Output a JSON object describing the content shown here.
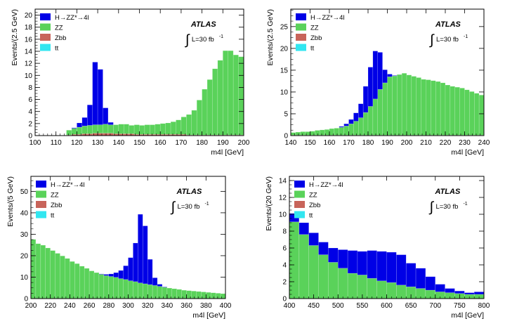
{
  "figure": {
    "legend_entries": [
      {
        "label": "H→ZZ*→4l",
        "color": "#0000e6"
      },
      {
        "label": "ZZ",
        "color": "#5ad25a"
      },
      {
        "label": "Zbb",
        "color": "#c8645a"
      },
      {
        "label": "tt",
        "color": "#32e6f0"
      }
    ],
    "experiment_label": "ATLAS",
    "luminosity_label": "L=30 fb",
    "luminosity_superscript": "-1",
    "integral_symbol": "∫"
  },
  "chart_data": [
    {
      "type": "bar",
      "stacked": true,
      "ylabel": "Events/(2.5 GeV)",
      "xlabel": "m4l [GeV]",
      "xlim": [
        100,
        200
      ],
      "ylim": [
        0,
        21
      ],
      "xticks": [
        100,
        110,
        120,
        130,
        140,
        150,
        160,
        170,
        180,
        190,
        200
      ],
      "yticks": [
        0,
        2,
        4,
        6,
        8,
        10,
        12,
        14,
        16,
        18,
        20
      ],
      "legend_position": "top-left",
      "bin_width": 2.5,
      "bin_start": 115,
      "series": [
        {
          "name": "tt",
          "values": [
            0,
            0,
            0,
            0,
            0,
            0,
            0,
            0,
            0,
            0,
            0,
            0,
            0,
            0,
            0,
            0,
            0,
            0,
            0,
            0,
            0,
            0,
            0,
            0,
            0,
            0,
            0,
            0,
            0,
            0,
            0,
            0,
            0,
            0
          ]
        },
        {
          "name": "Zbb",
          "values": [
            0.1,
            0.2,
            0.2,
            0.3,
            0.3,
            0.4,
            0.4,
            0.4,
            0.4,
            0.3,
            0.3,
            0.3,
            0.3,
            0.2,
            0.2,
            0.2,
            0.2,
            0.2,
            0.2,
            0.2,
            0.2,
            0.2,
            0.2,
            0.1,
            0.1,
            0.1,
            0.1,
            0.1,
            0.1,
            0.1,
            0.1,
            0.1,
            0.1,
            0.1
          ]
        },
        {
          "name": "ZZ",
          "values": [
            0.8,
            1.0,
            1.2,
            1.3,
            1.4,
            1.4,
            1.4,
            1.5,
            1.4,
            1.5,
            1.6,
            1.6,
            1.4,
            1.6,
            1.5,
            1.6,
            1.6,
            1.7,
            1.8,
            1.9,
            2.1,
            2.4,
            2.9,
            3.4,
            4.1,
            5.8,
            7.6,
            9.2,
            11.0,
            12.4,
            14.0,
            14.0,
            13.3,
            13.0
          ]
        },
        {
          "name": "H→ZZ*→4l",
          "values": [
            0,
            0.1,
            0.7,
            1.4,
            3.4,
            10.4,
            9.2,
            2.7,
            0.4,
            0,
            0,
            0,
            0,
            0,
            0,
            0,
            0,
            0,
            0,
            0,
            0,
            0,
            0,
            0,
            0,
            0,
            0,
            0,
            0,
            0,
            0,
            0,
            0,
            0
          ]
        }
      ]
    },
    {
      "type": "bar",
      "stacked": true,
      "ylabel": "Events/(2.5 GeV)",
      "xlabel": "m4l [GeV]",
      "xlim": [
        140,
        240
      ],
      "ylim": [
        0,
        29
      ],
      "xticks": [
        140,
        150,
        160,
        170,
        180,
        190,
        200,
        210,
        220,
        230,
        240
      ],
      "yticks": [
        0,
        5,
        10,
        15,
        20,
        25
      ],
      "legend_position": "top-left",
      "bin_width": 2.5,
      "bin_start": 140,
      "series": [
        {
          "name": "tt",
          "values": [
            0,
            0,
            0,
            0,
            0,
            0,
            0,
            0,
            0,
            0,
            0,
            0,
            0,
            0,
            0,
            0,
            0,
            0,
            0,
            0,
            0,
            0,
            0,
            0,
            0,
            0,
            0,
            0,
            0,
            0,
            0,
            0,
            0,
            0,
            0,
            0,
            0,
            0,
            0,
            0
          ]
        },
        {
          "name": "Zbb",
          "values": [
            0.1,
            0.1,
            0.1,
            0.1,
            0.1,
            0.1,
            0.1,
            0.1,
            0.1,
            0.1,
            0.1,
            0.1,
            0.1,
            0.1,
            0.1,
            0.1,
            0.1,
            0.1,
            0.1,
            0.1,
            0.1,
            0.1,
            0.1,
            0.1,
            0.1,
            0.1,
            0.1,
            0.1,
            0.1,
            0.1,
            0.1,
            0.1,
            0.1,
            0.1,
            0.1,
            0.1,
            0.1,
            0.1,
            0.1,
            0.1
          ]
        },
        {
          "name": "ZZ",
          "values": [
            0.6,
            0.7,
            0.8,
            0.8,
            0.9,
            1.1,
            1.2,
            1.3,
            1.5,
            1.6,
            1.8,
            2.1,
            2.6,
            3.2,
            4.0,
            5.2,
            6.6,
            8.3,
            10.5,
            12.0,
            13.4,
            13.6,
            13.9,
            14.2,
            13.8,
            13.5,
            13.2,
            12.8,
            12.7,
            12.5,
            12.3,
            12.0,
            11.5,
            11.2,
            11.0,
            10.8,
            10.4,
            10.0,
            9.6,
            9.2
          ]
        },
        {
          "name": "H→ZZ*→4l",
          "values": [
            0,
            0,
            0,
            0,
            0,
            0,
            0,
            0,
            0,
            0,
            0.2,
            0.5,
            1.0,
            1.9,
            3.2,
            6.0,
            9.0,
            11.0,
            8.5,
            3.0,
            0.6,
            0.1,
            0,
            0,
            0,
            0,
            0,
            0,
            0,
            0,
            0,
            0,
            0,
            0,
            0,
            0,
            0,
            0,
            0,
            0
          ]
        }
      ]
    },
    {
      "type": "bar",
      "stacked": true,
      "ylabel": "Events/(5 GeV)",
      "xlabel": "m4l [GeV]",
      "xlim": [
        200,
        400
      ],
      "ylim": [
        0,
        57
      ],
      "xticks": [
        200,
        220,
        240,
        260,
        280,
        300,
        320,
        340,
        360,
        380,
        400
      ],
      "yticks": [
        0,
        10,
        20,
        30,
        40,
        50
      ],
      "legend_position": "top-left",
      "bin_width": 5,
      "bin_start": 200,
      "series": [
        {
          "name": "tt",
          "values": [
            0,
            0,
            0,
            0,
            0,
            0,
            0,
            0,
            0,
            0,
            0,
            0,
            0,
            0,
            0,
            0,
            0,
            0,
            0,
            0,
            0,
            0,
            0,
            0,
            0,
            0,
            0,
            0,
            0,
            0,
            0,
            0,
            0,
            0,
            0,
            0,
            0,
            0,
            0,
            0
          ]
        },
        {
          "name": "Zbb",
          "values": [
            0.1,
            0.1,
            0.1,
            0.1,
            0.1,
            0.1,
            0.1,
            0.1,
            0.1,
            0.1,
            0.1,
            0.1,
            0.1,
            0.1,
            0.1,
            0.1,
            0.1,
            0.1,
            0.1,
            0.1,
            0.1,
            0.1,
            0.1,
            0.1,
            0.1,
            0.1,
            0.1,
            0.1,
            0.1,
            0.1,
            0.1,
            0.1,
            0.1,
            0.1,
            0.1,
            0.1,
            0.1,
            0.1,
            0.1,
            0.1
          ]
        },
        {
          "name": "ZZ",
          "values": [
            27.5,
            25.5,
            24.8,
            23.5,
            22.3,
            21.0,
            19.8,
            18.6,
            17.2,
            16.2,
            15.0,
            14.0,
            12.8,
            12.0,
            11.2,
            10.6,
            10.2,
            9.8,
            9.2,
            8.8,
            8.2,
            7.8,
            7.2,
            6.8,
            6.4,
            6.0,
            5.6,
            5.2,
            4.8,
            4.5,
            4.2,
            3.8,
            3.6,
            3.4,
            3.2,
            3.0,
            2.8,
            2.6,
            2.4,
            2.2
          ]
        },
        {
          "name": "H→ZZ*→4l",
          "values": [
            0,
            0,
            0,
            0,
            0,
            0,
            0,
            0,
            0,
            0,
            0,
            0,
            0,
            0,
            0.2,
            0.6,
            1.2,
            2.2,
            3.8,
            6.4,
            10.8,
            18.0,
            32.0,
            27.0,
            11.8,
            3.6,
            1.0,
            0.2,
            0,
            0,
            0,
            0,
            0,
            0,
            0,
            0,
            0,
            0,
            0,
            0
          ]
        }
      ]
    },
    {
      "type": "bar",
      "stacked": true,
      "ylabel": "Events/(20 GeV)",
      "xlabel": "m4l [GeV]",
      "xlim": [
        400,
        800
      ],
      "ylim": [
        0,
        14.5
      ],
      "xticks": [
        400,
        450,
        500,
        550,
        600,
        650,
        700,
        750,
        800
      ],
      "yticks": [
        0,
        2,
        4,
        6,
        8,
        10,
        12,
        14
      ],
      "legend_position": "top-left",
      "bin_width": 20,
      "bin_start": 400,
      "series": [
        {
          "name": "tt",
          "values": [
            0,
            0,
            0,
            0,
            0,
            0,
            0,
            0,
            0,
            0,
            0,
            0,
            0,
            0,
            0,
            0,
            0,
            0,
            0,
            0
          ]
        },
        {
          "name": "Zbb",
          "values": [
            0,
            0,
            0,
            0,
            0,
            0,
            0,
            0,
            0,
            0,
            0,
            0,
            0,
            0,
            0,
            0,
            0,
            0,
            0,
            0
          ]
        },
        {
          "name": "ZZ",
          "values": [
            9.1,
            7.6,
            6.3,
            5.2,
            4.3,
            3.6,
            3.0,
            2.8,
            2.4,
            2.1,
            1.9,
            1.6,
            1.4,
            1.2,
            1.0,
            0.8,
            0.7,
            0.6,
            0.5,
            0.5
          ]
        },
        {
          "name": "H→ZZ*→4l",
          "values": [
            1.0,
            1.4,
            1.5,
            1.5,
            1.7,
            2.2,
            2.7,
            2.8,
            3.3,
            3.5,
            3.6,
            3.6,
            2.8,
            2.4,
            1.6,
            0.9,
            0.5,
            0.3,
            0.2,
            0.3
          ]
        }
      ]
    }
  ]
}
